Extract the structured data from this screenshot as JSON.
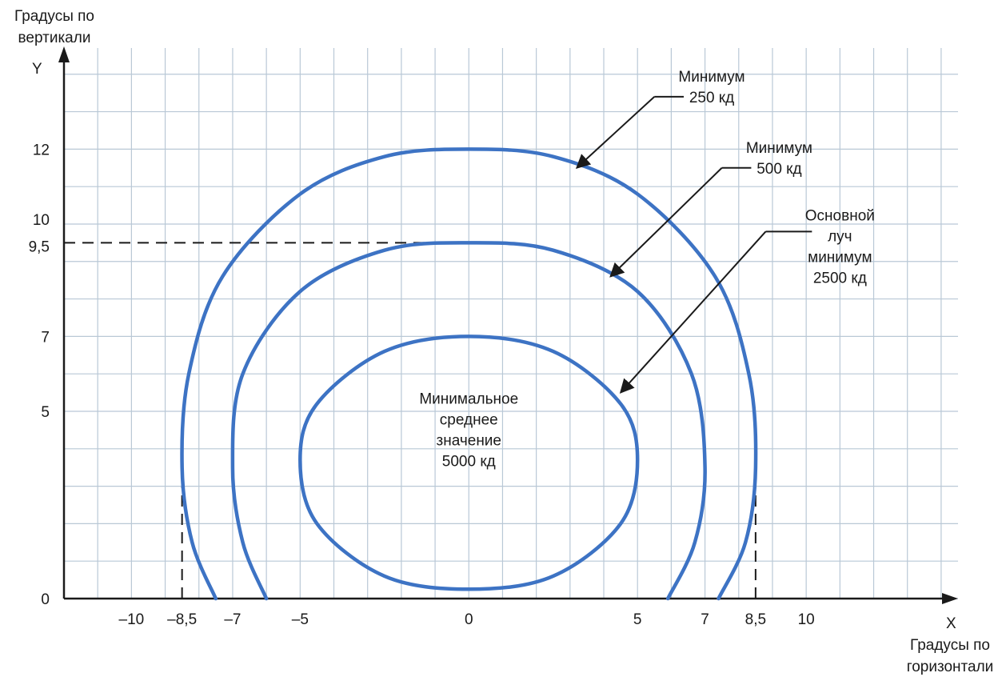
{
  "chart_data": {
    "type": "line",
    "title": "",
    "xlabel": "Градусы по горизонтали",
    "ylabel": "Градусы по вертикали",
    "x_axis_letter": "X",
    "y_axis_letter": "Y",
    "xlim": [
      -12,
      14.5
    ],
    "ylim": [
      0,
      14.7
    ],
    "grid": true,
    "x_ticks": [
      {
        "value": -10,
        "label": "–10"
      },
      {
        "value": -8.5,
        "label": "–8,5"
      },
      {
        "value": -7,
        "label": "–7"
      },
      {
        "value": -5,
        "label": "–5"
      },
      {
        "value": 0,
        "label": "0"
      },
      {
        "value": 5,
        "label": "5"
      },
      {
        "value": 7,
        "label": "7"
      },
      {
        "value": 8.5,
        "label": "8,5"
      },
      {
        "value": 10,
        "label": "10"
      }
    ],
    "y_ticks": [
      {
        "value": 0,
        "label": "0"
      },
      {
        "value": 5,
        "label": "5"
      },
      {
        "value": 7,
        "label": "7"
      },
      {
        "value": 9.5,
        "label": "9,5"
      },
      {
        "value": 10,
        "label": "10"
      },
      {
        "value": 12,
        "label": "12"
      }
    ],
    "series": [
      {
        "label_lines": [
          "Минимум",
          "250 кд"
        ],
        "color": "#3d73c4",
        "closed": false,
        "points": [
          [
            -7.5,
            0
          ],
          [
            -8.2,
            1.5
          ],
          [
            -8.5,
            3.5
          ],
          [
            -8.3,
            6
          ],
          [
            -7.3,
            8.6
          ],
          [
            -5,
            10.8
          ],
          [
            -2.5,
            11.8
          ],
          [
            0,
            12
          ],
          [
            2.5,
            11.8
          ],
          [
            5,
            10.8
          ],
          [
            7.3,
            8.6
          ],
          [
            8.3,
            6
          ],
          [
            8.5,
            3.5
          ],
          [
            8.2,
            1.5
          ],
          [
            7.4,
            0
          ]
        ]
      },
      {
        "label_lines": [
          "Минимум",
          "500 кд"
        ],
        "color": "#3d73c4",
        "closed": false,
        "points": [
          [
            -6,
            0
          ],
          [
            -6.7,
            1.5
          ],
          [
            -7,
            3.5
          ],
          [
            -6.7,
            6
          ],
          [
            -5,
            8.2
          ],
          [
            -2.5,
            9.3
          ],
          [
            0,
            9.5
          ],
          [
            2.5,
            9.3
          ],
          [
            5,
            8.2
          ],
          [
            6.6,
            6
          ],
          [
            7,
            3.5
          ],
          [
            6.7,
            1.5
          ],
          [
            5.9,
            0
          ]
        ]
      },
      {
        "label_lines": [
          "Основной",
          "луч",
          "минимум",
          "2500 кд"
        ],
        "color": "#3d73c4",
        "closed": true,
        "points": [
          [
            -5,
            3.7
          ],
          [
            -4.5,
            5.2
          ],
          [
            -2.5,
            6.6
          ],
          [
            0,
            7
          ],
          [
            2.5,
            6.6
          ],
          [
            4.5,
            5.2
          ],
          [
            5,
            3.7
          ],
          [
            4.5,
            2
          ],
          [
            2.5,
            0.6
          ],
          [
            0,
            0.25
          ],
          [
            -2.5,
            0.6
          ],
          [
            -4.5,
            2
          ]
        ]
      }
    ],
    "reference_lines": [
      {
        "type": "horizontal",
        "y": 9.5,
        "x_from": -12,
        "x_to": -1
      },
      {
        "type": "vertical",
        "x": -8.5,
        "y_from": 0,
        "y_to": 3.5
      },
      {
        "type": "vertical",
        "x": 8.5,
        "y_from": 0,
        "y_to": 3.5
      }
    ],
    "annotations": [
      {
        "lines": [
          "Минимальное",
          "среднее",
          "значение",
          "5000 кд"
        ],
        "x": 0,
        "y": 4.3
      }
    ],
    "callouts": [
      {
        "lines": [
          "Минимум",
          "250 кд"
        ],
        "text_x": 7.2,
        "text_y": 13.8,
        "from": [
          5.5,
          13.4
        ],
        "to": [
          3.2,
          11.5
        ]
      },
      {
        "lines": [
          "Минимум",
          "500 кд"
        ],
        "text_x": 9.2,
        "text_y": 11.9,
        "from": [
          7.5,
          11.5
        ],
        "to": [
          4.2,
          8.6
        ]
      },
      {
        "lines": [
          "Основной",
          "луч",
          "минимум",
          "2500 кд"
        ],
        "text_x": 11,
        "text_y": 10.1,
        "from": [
          8.8,
          9.8
        ],
        "to": [
          4.5,
          5.5
        ]
      }
    ]
  }
}
